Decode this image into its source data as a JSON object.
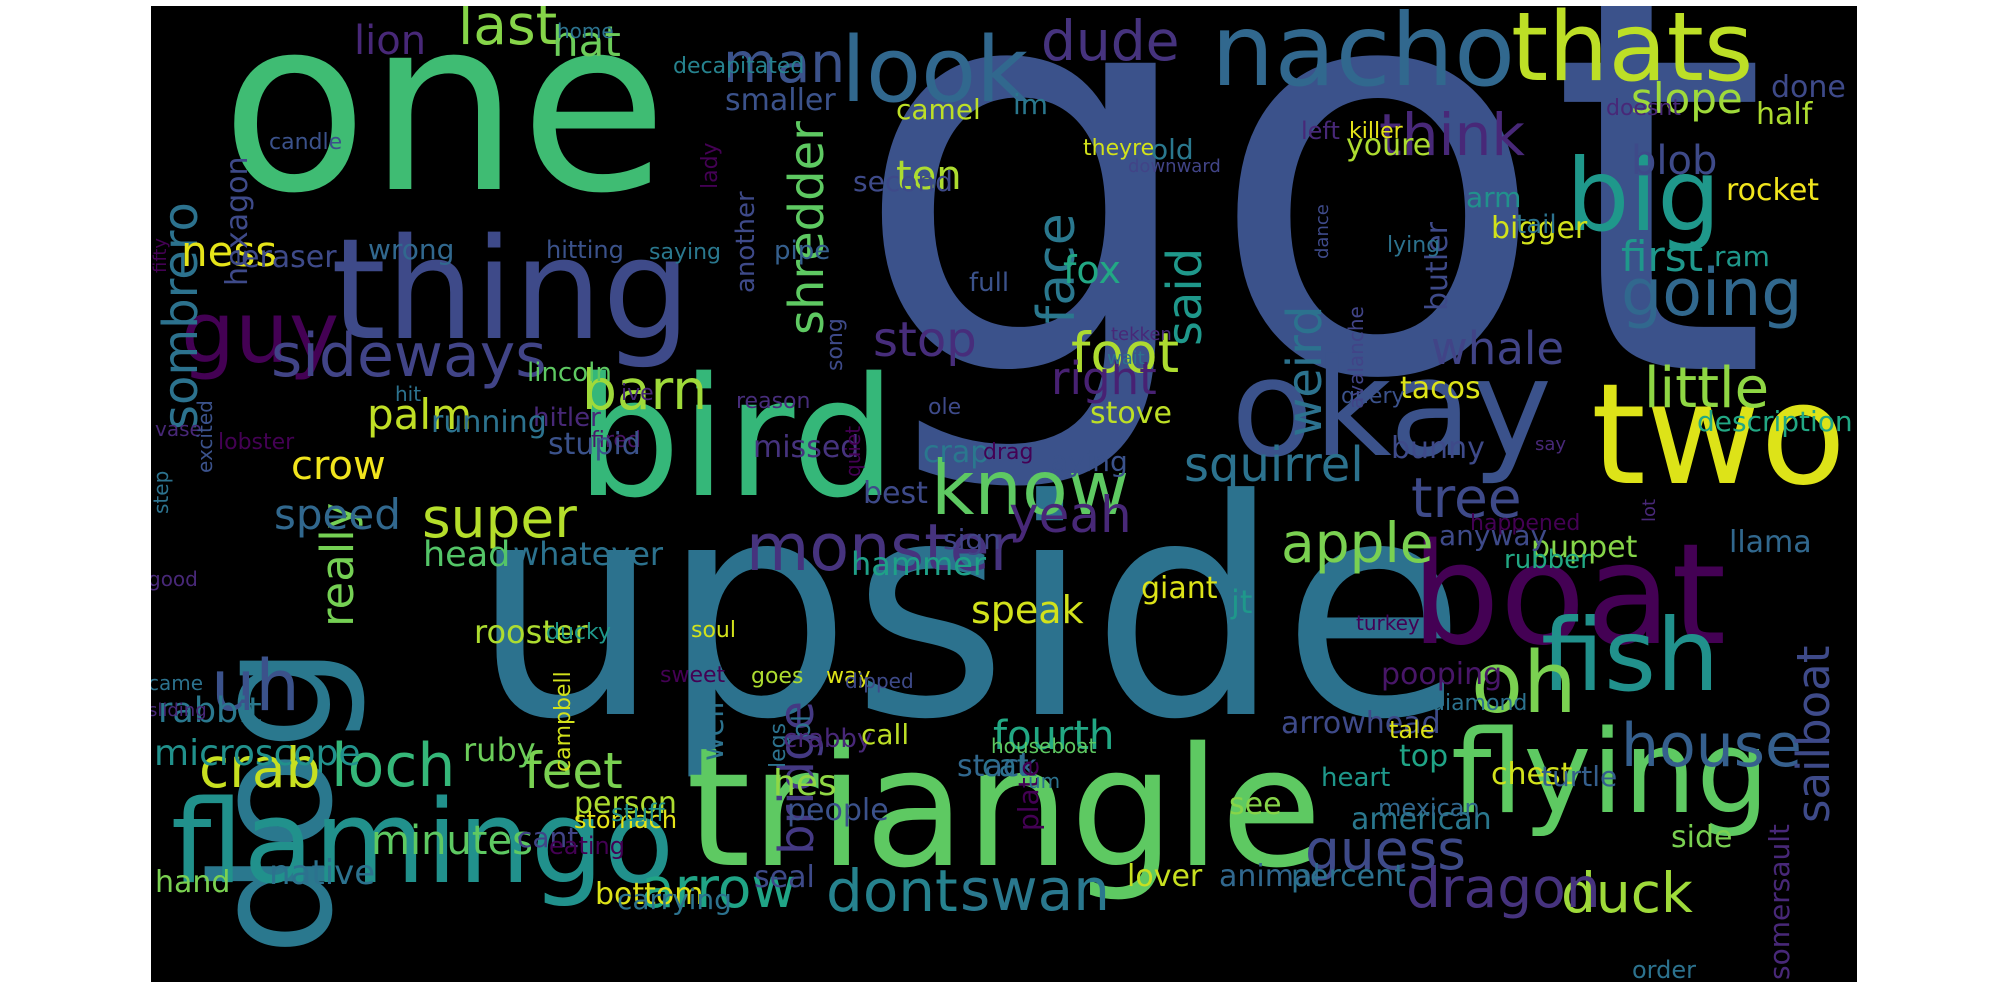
{
  "background": "#000000",
  "words": [
    {
      "t": "got",
      "c": "#3b528b"
    },
    {
      "t": "upside",
      "c": "#2c728e"
    },
    {
      "t": "one",
      "c": "#3fbc73"
    },
    {
      "t": "triangle",
      "c": "#5ec962"
    },
    {
      "t": "bird",
      "c": "#35b779"
    },
    {
      "t": "thing",
      "c": "#3e4a89"
    },
    {
      "t": "boat",
      "c": "#440154"
    },
    {
      "t": "dog",
      "c": "#2a788e"
    },
    {
      "t": "two",
      "c": "#dde318"
    },
    {
      "t": "okay",
      "c": "#3b528b"
    },
    {
      "t": "flamingo",
      "c": "#21918c"
    },
    {
      "t": "flying",
      "c": "#5ec962"
    },
    {
      "t": "nacho",
      "c": "#31688e"
    },
    {
      "t": "thats",
      "c": "#bddf26"
    },
    {
      "t": "look",
      "c": "#31688e"
    },
    {
      "t": "fish",
      "c": "#21918c"
    },
    {
      "t": "big",
      "c": "#1f988b"
    },
    {
      "t": "guy",
      "c": "#440154"
    },
    {
      "t": "oh",
      "c": "#7ad151"
    },
    {
      "t": "uh",
      "c": "#3b528b"
    },
    {
      "t": "know",
      "c": "#5ec962"
    },
    {
      "t": "monster",
      "c": "#46337e"
    },
    {
      "t": "sideways",
      "c": "#414487"
    },
    {
      "t": "going",
      "c": "#31688e"
    },
    {
      "t": "house",
      "c": "#355f8d"
    },
    {
      "t": "little",
      "c": "#8fd744"
    },
    {
      "t": "apple",
      "c": "#7ad151"
    },
    {
      "t": "loch",
      "c": "#35b779"
    },
    {
      "t": "arrow",
      "c": "#20a486"
    },
    {
      "t": "dont",
      "c": "#26828e"
    },
    {
      "t": "swan",
      "c": "#2a788e"
    },
    {
      "t": "crab",
      "c": "#c8e020"
    },
    {
      "t": "feet",
      "c": "#7ad151"
    },
    {
      "t": "duck",
      "c": "#9fda3a"
    },
    {
      "t": "dragon",
      "c": "#46337e"
    },
    {
      "t": "guess",
      "c": "#3e4a89"
    },
    {
      "t": "super",
      "c": "#b5de2b"
    },
    {
      "t": "barn",
      "c": "#9fda3a"
    },
    {
      "t": "foot",
      "c": "#addc30"
    },
    {
      "t": "face",
      "c": "#2a788e"
    },
    {
      "t": "said",
      "c": "#1f988b"
    },
    {
      "t": "think",
      "c": "#482878"
    },
    {
      "t": "tree",
      "c": "#3e4a89"
    },
    {
      "t": "yeah",
      "c": "#482878"
    },
    {
      "t": "stop",
      "c": "#472d7b"
    },
    {
      "t": "right",
      "c": "#482173"
    },
    {
      "t": "weird",
      "c": "#2c728e"
    },
    {
      "t": "squirrel",
      "c": "#2c728e"
    },
    {
      "t": "whale",
      "c": "#414487"
    },
    {
      "t": "shredder",
      "c": "#5ec962"
    },
    {
      "t": "sombrero",
      "c": "#2c728e"
    },
    {
      "t": "sailboat",
      "c": "#3e4a89"
    },
    {
      "t": "really",
      "c": "#75d054"
    },
    {
      "t": "bridge",
      "c": "#443983"
    },
    {
      "t": "last",
      "c": "#86d549"
    },
    {
      "t": "man",
      "c": "#3b528b"
    },
    {
      "t": "dude",
      "c": "#46337e"
    },
    {
      "t": "speed",
      "c": "#31688e"
    },
    {
      "t": "crow",
      "c": "#f1e51d"
    },
    {
      "t": "palm",
      "c": "#c0df25"
    },
    {
      "t": "ness",
      "c": "#e5e419"
    },
    {
      "t": "minutes",
      "c": "#5ec962"
    },
    {
      "t": "hat",
      "c": "#6ccd5a"
    },
    {
      "t": "lion",
      "c": "#482878"
    },
    {
      "t": "slope",
      "c": "#9fda3a"
    },
    {
      "t": "blob",
      "c": "#3e4a89"
    },
    {
      "t": "ten",
      "c": "#addc30"
    },
    {
      "t": "first",
      "c": "#1f988b"
    },
    {
      "t": "fox",
      "c": "#22a884"
    },
    {
      "t": "microscope",
      "c": "#21918c"
    },
    {
      "t": "fourth",
      "c": "#22a884"
    },
    {
      "t": "speak",
      "c": "#d2e21b"
    },
    {
      "t": "rabbit",
      "c": "#2a788e"
    },
    {
      "t": "head",
      "c": "#54c568"
    },
    {
      "t": "whatever",
      "c": "#2c728e"
    },
    {
      "t": "hammer",
      "c": "#1fa188"
    },
    {
      "t": "giant",
      "c": "#dde318"
    },
    {
      "t": "jt",
      "c": "#1f988b"
    },
    {
      "t": "puppet",
      "c": "#86d549"
    },
    {
      "t": "rooster",
      "c": "#addc30"
    },
    {
      "t": "hes",
      "c": "#8fd744"
    },
    {
      "t": "native",
      "c": "#2c728e"
    },
    {
      "t": "hand",
      "c": "#7ad151"
    },
    {
      "t": "chest",
      "c": "#d2e21b"
    },
    {
      "t": "top",
      "c": "#20a486"
    },
    {
      "t": "pooping",
      "c": "#481668"
    },
    {
      "t": "arrowhead",
      "c": "#3e4a89"
    },
    {
      "t": "turtle",
      "c": "#355f8d"
    },
    {
      "t": "american",
      "c": "#2a788e"
    },
    {
      "t": "side",
      "c": "#7ad151"
    },
    {
      "t": "lover",
      "c": "#c8e020"
    },
    {
      "t": "animal",
      "c": "#31688e"
    },
    {
      "t": "percent",
      "c": "#2c728e"
    },
    {
      "t": "seal",
      "c": "#3e4a89"
    },
    {
      "t": "bottom",
      "c": "#dde318"
    },
    {
      "t": "carrying",
      "c": "#2c728e"
    },
    {
      "t": "ruby",
      "c": "#6ccd5a"
    },
    {
      "t": "person",
      "c": "#addc30"
    },
    {
      "t": "stack",
      "c": "#31688e"
    },
    {
      "t": "cat",
      "c": "#2c728e"
    },
    {
      "t": "cant",
      "c": "#414487"
    },
    {
      "t": "eating",
      "c": "#440154"
    },
    {
      "t": "stomach",
      "c": "#e5e419"
    },
    {
      "t": "stuff",
      "c": "#21918c"
    },
    {
      "t": "people",
      "c": "#3b528b"
    },
    {
      "t": "see",
      "c": "#86d549"
    },
    {
      "t": "heart",
      "c": "#1f988b"
    },
    {
      "t": "mexican",
      "c": "#31688e"
    },
    {
      "t": "rubber",
      "c": "#22a884"
    },
    {
      "t": "anyway",
      "c": "#3e4a89"
    },
    {
      "t": "llama",
      "c": "#31688e"
    },
    {
      "t": "happened",
      "c": "#440154"
    },
    {
      "t": "bunny",
      "c": "#3e4a89"
    },
    {
      "t": "youre",
      "c": "#addc30"
    },
    {
      "t": "old",
      "c": "#2a788e"
    },
    {
      "t": "arm",
      "c": "#21918c"
    },
    {
      "t": "rocket",
      "c": "#f1e51d"
    },
    {
      "t": "bigger",
      "c": "#d2e21b"
    },
    {
      "t": "tail",
      "c": "#2c728e"
    },
    {
      "t": "ram",
      "c": "#1f988b"
    },
    {
      "t": "half",
      "c": "#addc30"
    },
    {
      "t": "done",
      "c": "#3e4a89"
    },
    {
      "t": "killer",
      "c": "#e5e419"
    },
    {
      "t": "left",
      "c": "#482878"
    },
    {
      "t": "doesnt",
      "c": "#482878"
    },
    {
      "t": "tacos",
      "c": "#dde318"
    },
    {
      "t": "description",
      "c": "#22a884"
    },
    {
      "t": "stove",
      "c": "#bddf26"
    },
    {
      "t": "laying",
      "c": "#3b528b"
    },
    {
      "t": "sign",
      "c": "#414487"
    },
    {
      "t": "crap",
      "c": "#2a788e"
    },
    {
      "t": "best",
      "c": "#3e4a89"
    },
    {
      "t": "missed",
      "c": "#46337e"
    },
    {
      "t": "reason",
      "c": "#472d7b"
    },
    {
      "t": "fired",
      "c": "#481668"
    },
    {
      "t": "hitler",
      "c": "#482878"
    },
    {
      "t": "stupid",
      "c": "#3b528b"
    },
    {
      "t": "running",
      "c": "#2c728e"
    },
    {
      "t": "lincoln",
      "c": "#5ec962"
    },
    {
      "t": "hit",
      "c": "#2c728e"
    },
    {
      "t": "lobster",
      "c": "#440154"
    },
    {
      "t": "eraser",
      "c": "#3e4a89"
    },
    {
      "t": "wrong",
      "c": "#31688e"
    },
    {
      "t": "hitting",
      "c": "#3b528b"
    },
    {
      "t": "saying",
      "c": "#2a788e"
    },
    {
      "t": "pipe",
      "c": "#355f8d"
    },
    {
      "t": "second",
      "c": "#3e4a89"
    },
    {
      "t": "another",
      "c": "#3e4a89"
    },
    {
      "t": "lady",
      "c": "#440154"
    },
    {
      "t": "candle",
      "c": "#3b528b"
    },
    {
      "t": "hexagon",
      "c": "#3e4a89"
    },
    {
      "t": "smaller",
      "c": "#3b528b"
    },
    {
      "t": "decapitated",
      "c": "#26828e"
    },
    {
      "t": "camel",
      "c": "#bddf26"
    },
    {
      "t": "im",
      "c": "#2a788e"
    },
    {
      "t": "theyre",
      "c": "#d2e21b"
    },
    {
      "t": "downward",
      "c": "#414487"
    },
    {
      "t": "song",
      "c": "#3e4a89"
    },
    {
      "t": "full",
      "c": "#3b528b"
    },
    {
      "t": "quiet",
      "c": "#440154"
    },
    {
      "t": "ive",
      "c": "#482878"
    },
    {
      "t": "query",
      "c": "#3b528b"
    },
    {
      "t": "tekken",
      "c": "#482878"
    },
    {
      "t": "wait",
      "c": "#2c728e"
    },
    {
      "t": "avalanche",
      "c": "#414487"
    },
    {
      "t": "butler",
      "c": "#3e4a89"
    },
    {
      "t": "dance",
      "c": "#3e4a89"
    },
    {
      "t": "lying",
      "c": "#2c728e"
    },
    {
      "t": "drag",
      "c": "#440154"
    },
    {
      "t": "ole",
      "c": "#3e4a89"
    },
    {
      "t": "say",
      "c": "#482878"
    },
    {
      "t": "lot",
      "c": "#482878"
    },
    {
      "t": "home",
      "c": "#2c728e"
    },
    {
      "t": "vase",
      "c": "#482878"
    },
    {
      "t": "excited",
      "c": "#3b528b"
    },
    {
      "t": "fifty",
      "c": "#440154"
    },
    {
      "t": "step",
      "c": "#2c728e"
    },
    {
      "t": "good",
      "c": "#482878"
    },
    {
      "t": "came",
      "c": "#2c728e"
    },
    {
      "t": "sliding",
      "c": "#482878"
    },
    {
      "t": "campbell",
      "c": "#d2e21b"
    },
    {
      "t": "well",
      "c": "#2c728e"
    },
    {
      "t": "ducky",
      "c": "#1f988b"
    },
    {
      "t": "legs",
      "c": "#2c728e"
    },
    {
      "t": "ol",
      "c": "#2c728e"
    },
    {
      "t": "sweet",
      "c": "#440154"
    },
    {
      "t": "soul",
      "c": "#d2e21b"
    },
    {
      "t": "goes",
      "c": "#addc30"
    },
    {
      "t": "way",
      "c": "#dde318"
    },
    {
      "t": "dipped",
      "c": "#3e4a89"
    },
    {
      "t": "crabby",
      "c": "#482878"
    },
    {
      "t": "call",
      "c": "#bddf26"
    },
    {
      "t": "houseboat",
      "c": "#5ec962"
    },
    {
      "t": "plate",
      "c": "#440154"
    },
    {
      "t": "um",
      "c": "#2c728e"
    },
    {
      "t": "turkey",
      "c": "#440154"
    },
    {
      "t": "tale",
      "c": "#dde318"
    },
    {
      "t": "diamond",
      "c": "#2c728e"
    },
    {
      "t": "somersault",
      "c": "#482878"
    },
    {
      "t": "order",
      "c": "#2c728e"
    }
  ]
}
